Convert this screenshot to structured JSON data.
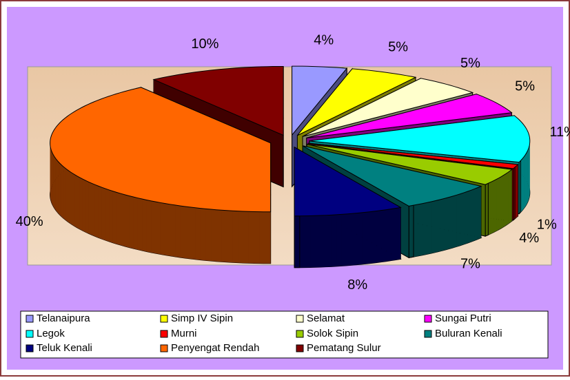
{
  "chart_data": {
    "type": "pie",
    "categories": [
      "Telanaipura",
      "Simp IV Sipin",
      "Selamat",
      "Sungai Putri",
      "Legok",
      "Murni",
      "Solok Sipin",
      "Buluran Kenali",
      "Teluk Kenali",
      "Penyengat Rendah",
      "Pematang Sulur"
    ],
    "values": [
      4,
      5,
      5,
      5,
      11,
      1,
      4,
      7,
      8,
      40,
      10
    ],
    "value_labels": [
      "4%",
      "5%",
      "5%",
      "5%",
      "11%",
      "1%",
      "4%",
      "7%",
      "8%",
      "40%",
      "10%"
    ],
    "colors": [
      "#9999ff",
      "#ffff00",
      "#ffffcc",
      "#ff00ff",
      "#00ffff",
      "#ff0000",
      "#99cc00",
      "#008080",
      "#000080",
      "#ff6600",
      "#800000"
    ]
  }
}
